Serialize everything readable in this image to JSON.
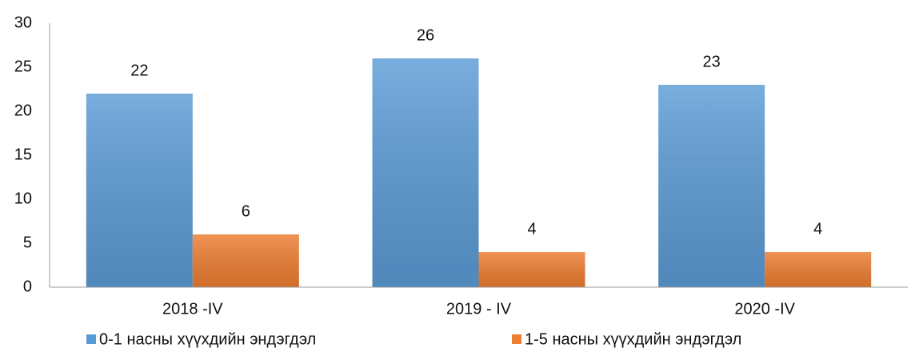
{
  "chart_data": {
    "type": "bar",
    "categories": [
      "2018 -IV",
      "2019 - IV",
      "2020  -IV"
    ],
    "series": [
      {
        "name": "0-1 насны хүүхдийн эндэгдэл",
        "color": "#5b9bd5",
        "values": [
          22,
          26,
          23
        ]
      },
      {
        "name": "1-5 насны хүүхдийн эндэгдэл",
        "color": "#ed7d31",
        "values": [
          6,
          4,
          4
        ]
      }
    ],
    "ylim": [
      0,
      30
    ],
    "yticks": [
      0,
      5,
      10,
      15,
      20,
      25,
      30
    ],
    "grid": false,
    "legend": "bottom"
  }
}
